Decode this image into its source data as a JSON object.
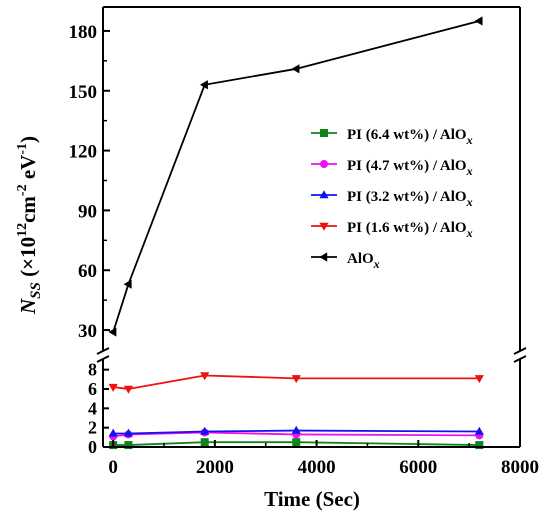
{
  "chart_data": {
    "type": "line",
    "xlabel": "Time (Sec)",
    "ylabel": {
      "main": "N",
      "main_subscript": "SS",
      "rest": " (×10",
      "exp1": "12",
      "mid": "cm",
      "exp2": "-2",
      "tail": " eV",
      "exp3": "-1",
      "close": ")"
    },
    "xlim": [
      -200,
      8000
    ],
    "x_ticks": [
      "0",
      "2000",
      "4000",
      "6000",
      "8000"
    ],
    "y_axis_broken": true,
    "y_lower": {
      "range": [
        0,
        9
      ],
      "ticks": [
        "0",
        "2",
        "4",
        "6",
        "8"
      ]
    },
    "y_upper": {
      "range": [
        20,
        192
      ],
      "ticks": [
        "30",
        "60",
        "90",
        "120",
        "150",
        "180"
      ]
    },
    "legend_position": "right-middle",
    "series": [
      {
        "name": "PI (6.4 wt%) / AlO",
        "subscript": "x",
        "color": "#12821b",
        "marker": "square",
        "x": [
          0,
          300,
          1800,
          3600,
          7200
        ],
        "y": [
          0.2,
          0.2,
          0.5,
          0.5,
          0.2
        ]
      },
      {
        "name": "PI (4.7 wt%) / AlO",
        "subscript": "x",
        "color": "#ee10ee",
        "marker": "circle",
        "x": [
          0,
          300,
          1800,
          3600,
          7200
        ],
        "y": [
          1.1,
          1.3,
          1.5,
          1.3,
          1.2
        ]
      },
      {
        "name": "PI (3.2 wt%) / AlO",
        "subscript": "x",
        "color": "#1212ee",
        "marker": "triangle-up",
        "x": [
          0,
          300,
          1800,
          3600,
          7200
        ],
        "y": [
          1.4,
          1.4,
          1.6,
          1.7,
          1.6
        ]
      },
      {
        "name": "PI (1.6 wt%) / AlO",
        "subscript": "x",
        "color": "#ee1111",
        "marker": "triangle-down",
        "x": [
          0,
          300,
          1800,
          3600,
          7200
        ],
        "y": [
          6.2,
          6.0,
          7.4,
          7.1,
          7.1
        ]
      },
      {
        "name": "AlO",
        "subscript": "x",
        "color": "#000000",
        "marker": "triangle-left",
        "x": [
          0,
          300,
          1800,
          3600,
          7200
        ],
        "y": [
          29,
          53,
          153,
          161,
          185
        ]
      }
    ]
  }
}
